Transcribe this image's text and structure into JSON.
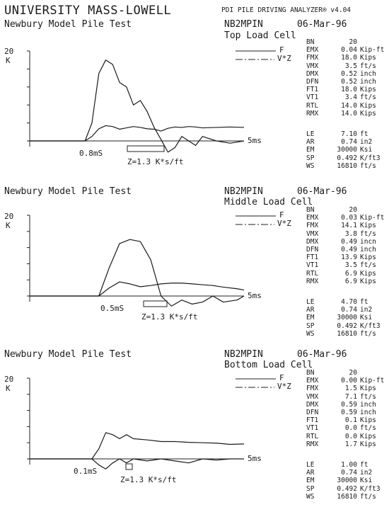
{
  "header": {
    "institution": "UNIVERSITY MASS-LOWELL",
    "analyzer": "PDI PILE DRIVING ANALYZER® v4.04"
  },
  "panels": [
    {
      "title": "Newbury Model Pile Test",
      "code": "NB2MPIN",
      "date": "06-Mar-96",
      "cell": "Top Load Cell",
      "legend": [
        "F",
        "V*Z"
      ],
      "y_label": "20\nK",
      "x_label": "5ms",
      "scale_time": "0.8mS",
      "scale_imp": "Z=1.3 K*s/ft",
      "params": [
        [
          "BN",
          "20",
          ""
        ],
        [
          "EMX",
          "0.04",
          "Kip-ft"
        ],
        [
          "FMX",
          "18.0",
          "Kips"
        ],
        [
          "VMX",
          "3.5",
          "ft/s"
        ],
        [
          "DMX",
          "0.52",
          "inch"
        ],
        [
          "DFN",
          "0.52",
          "inch"
        ],
        [
          "FT1",
          "18.0",
          "Kips"
        ],
        [
          "VT1",
          "3.4",
          "ft/s"
        ],
        [
          "RTL",
          "14.0",
          "Kips"
        ],
        [
          "RMX",
          "14.0",
          "Kips"
        ]
      ],
      "params2": [
        [
          "LE",
          "7.10",
          "ft"
        ],
        [
          "AR",
          "0.74",
          "in2"
        ],
        [
          "EM",
          "30000",
          "Ksi"
        ],
        [
          "SP",
          "0.492",
          "K/ft3"
        ],
        [
          "WS",
          "16810",
          "ft/s"
        ]
      ]
    },
    {
      "title": "Newbury Model Pile Test",
      "code": "NB2MPIN",
      "date": "06-Mar-96",
      "cell": "Middle Load Cell",
      "legend": [
        "F",
        "V*Z"
      ],
      "y_label": "20\nK",
      "x_label": "5ms",
      "scale_time": "0.5mS",
      "scale_imp": "Z=1.3 K*s/ft",
      "params": [
        [
          "BN",
          "20",
          ""
        ],
        [
          "EMX",
          "0.03",
          "Kip-ft"
        ],
        [
          "FMX",
          "14.1",
          "Kips"
        ],
        [
          "VMX",
          "3.8",
          "ft/s"
        ],
        [
          "DMX",
          "0.49",
          "incn"
        ],
        [
          "DFN",
          "0.49",
          "inch"
        ],
        [
          "FT1",
          "13.9",
          "Kips"
        ],
        [
          "VT1",
          "3.5",
          "ft/s"
        ],
        [
          "RTL",
          "6.9",
          "Kips"
        ],
        [
          "RMX",
          "6.9",
          "Kips"
        ]
      ],
      "params2": [
        [
          "LE",
          "4.70",
          "ft"
        ],
        [
          "AR",
          "0.74",
          "in2"
        ],
        [
          "EM",
          "30000",
          "Ksi"
        ],
        [
          "SP",
          "0.492",
          "K/ft3"
        ],
        [
          "WS",
          "16810",
          "ft/s"
        ]
      ]
    },
    {
      "title": "Newbury Model Pile Test",
      "code": "NB2MPIN",
      "date": "06-Mar-96",
      "cell": "Bottom Load Cell",
      "legend": [
        "F",
        "V*Z"
      ],
      "y_label": "20\nK",
      "x_label": "5ms",
      "scale_time": "0.1mS",
      "scale_imp": "Z=1.3 K*s/ft",
      "params": [
        [
          "BN",
          "20",
          ""
        ],
        [
          "EMX",
          "0.00",
          "Kip-ft"
        ],
        [
          "FMX",
          "1.5",
          "Kips"
        ],
        [
          "VMX",
          "7.1",
          "ft/s"
        ],
        [
          "DMX",
          "0.59",
          "inch"
        ],
        [
          "DFN",
          "0.59",
          "inch"
        ],
        [
          "FT1",
          "0.1",
          "Kips"
        ],
        [
          "VT1",
          "0.0",
          "ft/s"
        ],
        [
          "RTL",
          "0.0",
          "Kips"
        ],
        [
          "RMX",
          "1.7",
          "Kips"
        ]
      ],
      "params2": [
        [
          "LE",
          "1.00",
          "ft"
        ],
        [
          "AR",
          "0.74",
          "in2"
        ],
        [
          "EM",
          "30000",
          "Ksi"
        ],
        [
          "SP",
          "0.492",
          "K/ft3"
        ],
        [
          "WS",
          "16810",
          "ft/s"
        ]
      ]
    }
  ],
  "chart_data": [
    {
      "type": "line",
      "xlabel": "5ms",
      "ylabel": "K",
      "ylim": [
        -4,
        20
      ],
      "series": [
        {
          "name": "F",
          "x": [
            0,
            1.6,
            1.8,
            2.0,
            2.2,
            2.4,
            2.6,
            2.8,
            3.0,
            3.2,
            3.4,
            3.6,
            3.8,
            4.0,
            4.2,
            4.4,
            4.6,
            4.8,
            5.0,
            5.4,
            5.8,
            6.2
          ],
          "values": [
            0,
            0,
            4,
            15,
            18,
            17,
            13,
            12,
            8,
            9,
            6.5,
            3,
            0.3,
            -2.5,
            -1.5,
            1,
            0,
            -1,
            1,
            0,
            -0.5,
            0
          ]
        },
        {
          "name": "V*Z",
          "x": [
            0,
            1.6,
            1.8,
            2.0,
            2.2,
            2.4,
            2.6,
            2.8,
            3.0,
            3.2,
            3.4,
            3.6,
            3.8,
            4.0,
            4.2,
            4.4,
            4.6,
            4.8,
            5.0,
            5.4,
            5.8,
            6.2
          ],
          "values": [
            0,
            0,
            1,
            2.7,
            3.4,
            3.2,
            2.6,
            2.9,
            3.2,
            3.0,
            2.7,
            2.6,
            2.2,
            2.8,
            3.1,
            3.0,
            3.2,
            3.1,
            2.9,
            3.0,
            3.1,
            3.0
          ]
        }
      ]
    },
    {
      "type": "line",
      "xlabel": "5ms",
      "ylabel": "K",
      "ylim": [
        -4,
        20
      ],
      "series": [
        {
          "name": "F",
          "x": [
            0,
            2.0,
            2.3,
            2.6,
            2.9,
            3.2,
            3.5,
            3.8,
            4.1,
            4.4,
            4.7,
            5.0,
            5.3,
            5.6,
            6.0,
            6.2
          ],
          "values": [
            0,
            0,
            7,
            13,
            14,
            13.5,
            9,
            0,
            -2.5,
            -1,
            -2,
            -1.5,
            0,
            -1.5,
            -1,
            0
          ]
        },
        {
          "name": "V*Z",
          "x": [
            0,
            2.0,
            2.3,
            2.6,
            2.9,
            3.2,
            3.5,
            3.8,
            4.1,
            4.4,
            4.7,
            5.0,
            5.3,
            5.6,
            6.0,
            6.2
          ],
          "values": [
            0,
            0,
            2,
            3.5,
            3,
            2.3,
            2.6,
            3.0,
            3.2,
            3.2,
            3.0,
            2.8,
            2.6,
            2.2,
            1.8,
            1.5
          ]
        }
      ]
    },
    {
      "type": "line",
      "xlabel": "5ms",
      "ylabel": "K",
      "ylim": [
        -4,
        20
      ],
      "series": [
        {
          "name": "F",
          "x": [
            0,
            1.8,
            2.0,
            2.2,
            2.4,
            2.6,
            2.8,
            3.0,
            3.4,
            3.8,
            4.2,
            4.6,
            5.0,
            5.4,
            5.8,
            6.2
          ],
          "values": [
            0,
            0,
            -1.5,
            -2.5,
            -1,
            0,
            -1,
            0,
            -0.5,
            0,
            -0.5,
            -1,
            0,
            -0.3,
            0,
            0
          ]
        },
        {
          "name": "V*Z",
          "x": [
            0,
            1.8,
            2.0,
            2.2,
            2.4,
            2.6,
            2.8,
            3.0,
            3.4,
            3.8,
            4.2,
            4.6,
            5.0,
            5.4,
            5.8,
            6.2
          ],
          "values": [
            0,
            0,
            2.5,
            6.5,
            6,
            5,
            6,
            5,
            4.7,
            4.3,
            4.3,
            4.1,
            4.0,
            3.9,
            3.6,
            3.7
          ]
        }
      ]
    }
  ]
}
